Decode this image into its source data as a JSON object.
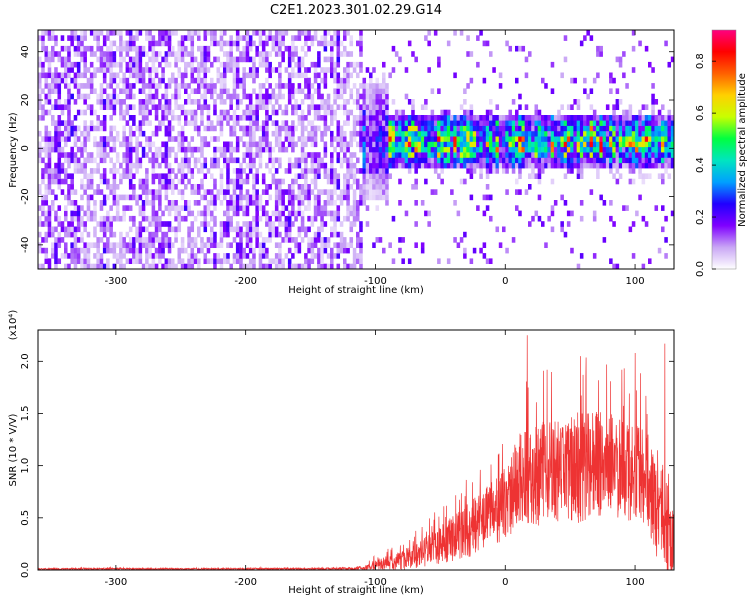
{
  "page_title": "C2E1.2023.301.02.29.G14",
  "chart_data": [
    {
      "type": "heatmap",
      "xlabel": "Height of straight line (km)",
      "ylabel": "Frequency (Hz)",
      "xlim": [
        -360,
        130
      ],
      "ylim": [
        -50,
        49
      ],
      "x_ticks": [
        -300,
        -200,
        -100,
        0,
        100
      ],
      "x_tick_labels": [
        "-300",
        "-200",
        "-100",
        "0",
        "100"
      ],
      "y_ticks": [
        -40,
        -20,
        0,
        20,
        40
      ],
      "y_tick_labels": [
        "-40",
        "-20",
        "0",
        "20",
        "40"
      ],
      "colorbar": {
        "label": "Normalized spectral amplitude",
        "range": [
          0,
          0.92
        ],
        "ticks": [
          0.0,
          0.2,
          0.4,
          0.6,
          0.8
        ],
        "tick_labels": [
          "0.0",
          "0.2",
          "0.4",
          "0.6",
          "0.8"
        ],
        "colormap": [
          "#ffffff",
          "#c9a6f5",
          "#7f00ff",
          "#2000ff",
          "#00a0ff",
          "#00e5c0",
          "#00ff40",
          "#c8ff00",
          "#ffd000",
          "#ff6000",
          "#ff0000",
          "#ff0080"
        ]
      },
      "regions": [
        {
          "x_range": [
            -360,
            -110
          ],
          "f_center": 0,
          "f_halfwidth": 50,
          "amplitude": 0.1,
          "pattern": "broadband noise"
        },
        {
          "x_range": [
            -110,
            -90
          ],
          "f_center": 2,
          "f_halfwidth": 15,
          "amplitude": 0.22,
          "pattern": "transition"
        },
        {
          "x_range": [
            -90,
            130
          ],
          "f_center": 2,
          "f_halfwidth": 7,
          "amplitude": 0.5,
          "pattern": "narrow band near 0 Hz"
        }
      ],
      "hotspots": [
        {
          "x": 95,
          "f": 1.5,
          "amplitude": 0.88
        },
        {
          "x": 105,
          "f": 0.5,
          "amplitude": 0.8
        },
        {
          "x": -80,
          "f": -1,
          "amplitude": 0.55
        },
        {
          "x": 20,
          "f": 0,
          "amplitude": 0.55
        }
      ]
    },
    {
      "type": "line",
      "xlabel": "Height of straight line (km)",
      "ylabel": "SNR (10 * V/V)",
      "yscale_label": "(x10⁴)",
      "xlim": [
        -360,
        130
      ],
      "ylim": [
        0,
        23000
      ],
      "x_ticks": [
        -300,
        -200,
        -100,
        0,
        100
      ],
      "x_tick_labels": [
        "-300",
        "-200",
        "-100",
        "0",
        "100"
      ],
      "y_ticks": [
        0,
        5000,
        10000,
        15000,
        20000
      ],
      "y_tick_labels": [
        "0.0",
        "0.5",
        "1.0",
        "1.5",
        "2.0"
      ],
      "color": "#ee3333",
      "series": [
        {
          "x": [
            -360,
            -300,
            -250,
            -200,
            -150,
            -110,
            -100,
            -80,
            -60,
            -40,
            -20,
            0,
            10,
            20,
            40,
            60,
            80,
            100,
            110,
            120,
            130
          ],
          "mean": [
            100,
            120,
            100,
            110,
            120,
            150,
            500,
            900,
            1800,
            3000,
            4500,
            6500,
            8500,
            9000,
            9500,
            10000,
            10000,
            9500,
            8000,
            4000,
            2000
          ],
          "spread": [
            60,
            80,
            60,
            70,
            80,
            120,
            500,
            900,
            1500,
            2200,
            3000,
            3500,
            4500,
            5000,
            5000,
            5500,
            5000,
            5000,
            5000,
            4000,
            3500
          ]
        }
      ],
      "peaks": [
        {
          "x": 17,
          "y": 22500
        },
        {
          "x": 58,
          "y": 20500
        },
        {
          "x": 100,
          "y": 20800
        },
        {
          "x": 123,
          "y": 21700
        }
      ]
    }
  ]
}
